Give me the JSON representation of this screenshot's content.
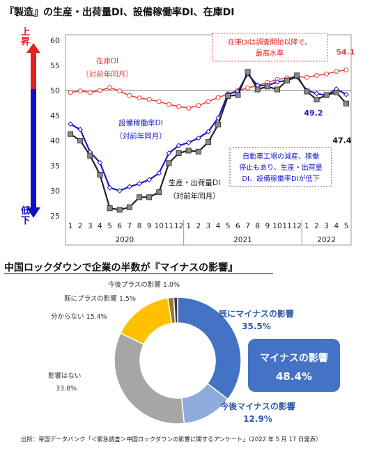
{
  "top_title": "『製造』の生産・出荷量DI、設備稼働率DI、在庫DI",
  "bottom_title": "中国ロックダウンで企業の半数が『マイナスの影響』",
  "source_note": "出所：帝国データバンク「＜緊急調査＞中国ロックダウンの影響に関するアンケート」（2022 年 5 月 17 日発表）",
  "side_arrow": {
    "up_label": "上昇",
    "down_label": "低下"
  },
  "colors": {
    "inventory": "#e8403a",
    "capacity": "#1a1acc",
    "production": "#222222",
    "arrow_up": "#e8201c",
    "arrow_down": "#1010c8",
    "annotation_red": "#e8201c",
    "annotation_blue": "#1a1acc"
  },
  "chart_data": [
    {
      "type": "line",
      "x_months": [
        "1",
        "2",
        "3",
        "4",
        "5",
        "6",
        "7",
        "8",
        "9",
        "10",
        "11",
        "12",
        "1",
        "2",
        "3",
        "4",
        "5",
        "6",
        "7",
        "8",
        "9",
        "10",
        "11",
        "12",
        "1",
        "2",
        "3",
        "4",
        "5"
      ],
      "x_years": [
        {
          "label": "2020",
          "months": 12
        },
        {
          "label": "2021",
          "months": 12
        },
        {
          "label": "2022",
          "months": 5
        }
      ],
      "ylim": [
        25,
        60
      ],
      "yticks": [
        25,
        30,
        35,
        40,
        45,
        50,
        55,
        60
      ],
      "reference_line": 50,
      "series": [
        {
          "name": "在庫DI",
          "label_line2": "（対前年同月）",
          "marker": "circle",
          "values": [
            49.6,
            49.9,
            49.6,
            50.0,
            50.6,
            49.9,
            49.0,
            48.5,
            48.2,
            47.8,
            47.2,
            46.8,
            46.5,
            47.0,
            47.8,
            48.6,
            49.3,
            50.0,
            50.5,
            51.0,
            51.6,
            52.2,
            52.5,
            52.8,
            52.6,
            53.0,
            53.3,
            53.8,
            54.1
          ]
        },
        {
          "name": "設備稼働率DI",
          "label_line2": "（対前年同月）",
          "marker": "diamond",
          "values": [
            43.3,
            42.2,
            37.7,
            35.6,
            30.6,
            30.0,
            30.8,
            31.4,
            32.2,
            33.5,
            37.5,
            39.0,
            39.6,
            40.5,
            41.8,
            44.5,
            49.3,
            49.8,
            53.3,
            51.0,
            51.0,
            51.7,
            52.0,
            52.7,
            50.0,
            49.4,
            49.0,
            50.3,
            49.2
          ]
        },
        {
          "name": "生産・出荷量DI",
          "label_line2": "（対前年同月）",
          "marker": "square",
          "values": [
            41.3,
            40.0,
            37.0,
            33.2,
            26.5,
            26.2,
            26.7,
            28.7,
            28.7,
            29.7,
            35.5,
            37.5,
            38.0,
            37.8,
            39.7,
            43.2,
            48.9,
            49.1,
            53.7,
            50.2,
            50.8,
            50.2,
            52.0,
            53.0,
            49.8,
            48.2,
            49.1,
            49.6,
            47.4
          ]
        }
      ],
      "end_value_labels": {
        "inventory": "54.1",
        "capacity": "49.2",
        "production": "47.4"
      },
      "annotations": [
        {
          "text_lines": [
            "在庫DIは調査開始以降で、",
            "最高水準"
          ],
          "color": "red"
        },
        {
          "text_lines": [
            "自動車工場の減産、稼働",
            "停止もあり、生産・出荷量",
            "DI、設備稼働率DIが低下"
          ],
          "color": "blue"
        }
      ]
    },
    {
      "type": "pie",
      "variant": "donut",
      "slices": [
        {
          "label": "既にマイナスの影響",
          "value": 35.5,
          "value_label": "35.5%",
          "color": "#4472c4"
        },
        {
          "label": "今後マイナスの影響",
          "value": 12.9,
          "value_label": "12.9%",
          "color": "#8faadc"
        },
        {
          "label": "影響はない",
          "value": 33.8,
          "value_label": "33.8%",
          "color": "#a6a6a6"
        },
        {
          "label": "分からない",
          "value": 15.4,
          "value_label": "15.4%",
          "color": "#ffc000"
        },
        {
          "label": "既にプラスの影響",
          "value": 1.5,
          "value_label": "1.5%",
          "color": "#9c7a2e"
        },
        {
          "label": "今後プラスの影響",
          "value": 1.0,
          "value_label": "1.0%",
          "color": "#3d3d3d"
        }
      ],
      "summary_box": {
        "title": "マイナスの影響",
        "value": "48.4%",
        "color": "#4472c4"
      }
    }
  ]
}
